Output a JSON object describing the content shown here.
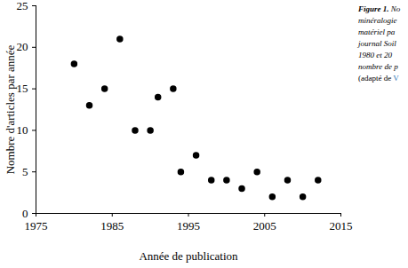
{
  "chart_data": {
    "type": "scatter",
    "xlabel": "Année de publication",
    "ylabel": "Nombre d'articles par année",
    "x": [
      1980,
      1982,
      1984,
      1986,
      1988,
      1990,
      1991,
      1993,
      1994,
      1996,
      1998,
      2000,
      2002,
      2004,
      2006,
      2008,
      2010,
      2012
    ],
    "values": [
      18,
      13,
      15,
      21,
      10,
      10,
      14,
      15,
      5,
      7,
      4,
      4,
      3,
      5,
      2,
      4,
      2,
      4
    ],
    "color": "#000000",
    "marker": "circle",
    "xlim": [
      1975,
      2015
    ],
    "xticks": [
      1975,
      1985,
      1995,
      2005,
      2015
    ],
    "ylim": [
      0,
      25
    ],
    "yticks": [
      0,
      5,
      10,
      15,
      20,
      25
    ],
    "grid": false,
    "caption": [
      "Figure 1. No",
      "minéralogie",
      "matériel pa",
      "journal Soil",
      "1980 et 20",
      "nombre de p",
      "(adapté de V"
    ]
  }
}
